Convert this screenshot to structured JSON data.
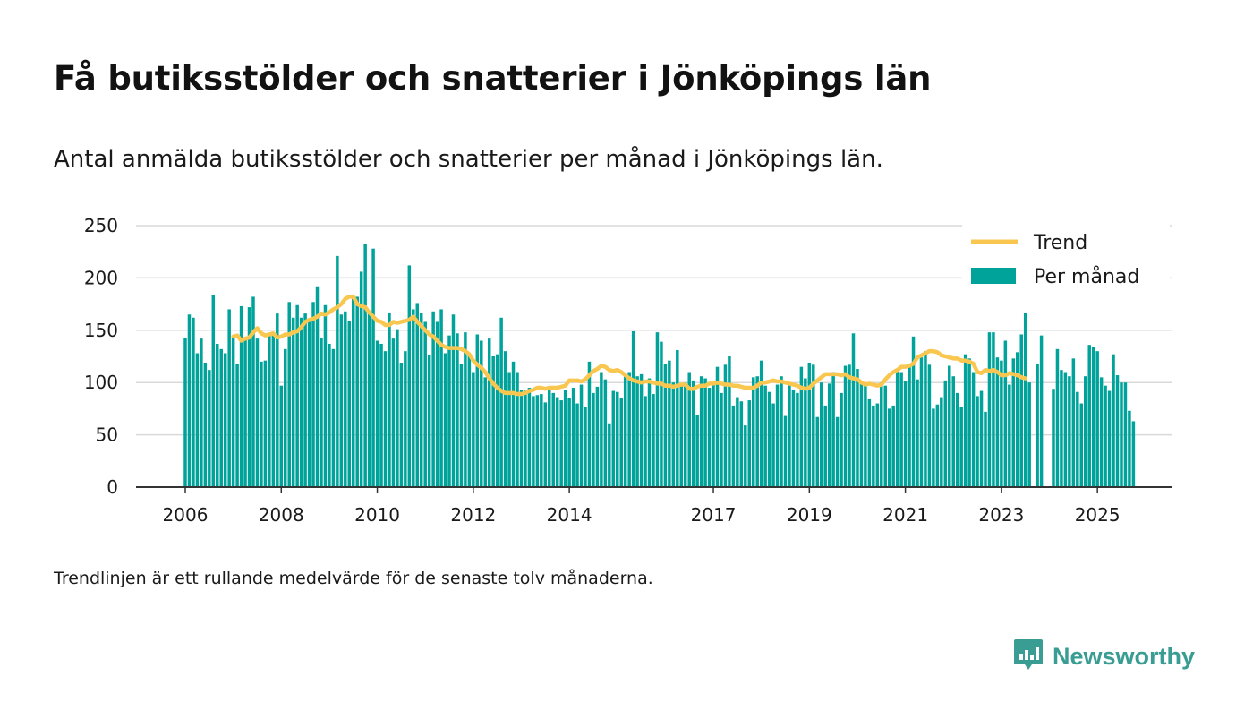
{
  "title": "Få butiksstölder och snatterier i Jönköpings län",
  "subtitle": "Antal anmälda butiksstölder och snatterier per månad i Jönköpings län.",
  "note": "Trendlinjen är ett rullande medelvärde för de senaste tolv månaderna.",
  "brand": "Newsworthy",
  "colors": {
    "bar": "#00a39a",
    "trend": "#f9c74f",
    "grid": "#d9d9d9",
    "axis": "#333333",
    "brand": "#3a9d93"
  },
  "chart_data": {
    "type": "bar",
    "title": "",
    "xlabel": "",
    "ylabel": "",
    "x_start": "2006-01",
    "ylim": [
      0,
      250
    ],
    "y_ticks": [
      0,
      50,
      100,
      150,
      200,
      250
    ],
    "x_ticks": [
      "2006",
      "2008",
      "2010",
      "2012",
      "2014",
      "2017",
      "2019",
      "2021",
      "2023",
      "2025"
    ],
    "grid": "horizontal",
    "legend_position": "top-right",
    "series": [
      {
        "name": "Per månad",
        "type": "bar",
        "values": [
          143,
          165,
          162,
          128,
          142,
          119,
          112,
          184,
          137,
          132,
          128,
          170,
          143,
          118,
          173,
          141,
          172,
          182,
          142,
          120,
          121,
          145,
          145,
          166,
          97,
          132,
          177,
          162,
          174,
          162,
          166,
          158,
          177,
          192,
          143,
          174,
          137,
          132,
          221,
          165,
          168,
          159,
          180,
          182,
          206,
          232,
          167,
          228,
          140,
          137,
          130,
          167,
          142,
          151,
          119,
          130,
          212,
          170,
          176,
          167,
          158,
          126,
          168,
          158,
          170,
          128,
          145,
          165,
          147,
          118,
          148,
          128,
          110,
          146,
          140,
          105,
          142,
          125,
          127,
          162,
          130,
          110,
          120,
          110,
          93,
          93,
          95,
          87,
          88,
          89,
          81,
          94,
          90,
          86,
          83,
          93,
          85,
          95,
          80,
          98,
          77,
          120,
          90,
          96,
          110,
          103,
          61,
          92,
          91,
          85,
          107,
          110,
          149,
          106,
          108,
          87,
          104,
          89,
          148,
          139,
          118,
          121,
          100,
          131,
          98,
          100,
          110,
          102,
          69,
          106,
          104,
          95,
          99,
          115,
          90,
          117,
          125,
          78,
          86,
          82,
          59,
          83,
          105,
          106,
          121,
          97,
          91,
          80,
          98,
          106,
          68,
          98,
          93,
          90,
          115,
          104,
          119,
          117,
          67,
          100,
          78,
          99,
          110,
          67,
          90,
          116,
          117,
          147,
          113,
          100,
          97,
          84,
          78,
          80,
          100,
          97,
          75,
          78,
          111,
          110,
          101,
          118,
          144,
          103,
          124,
          130,
          117,
          75,
          79,
          86,
          102,
          116,
          106,
          90,
          77,
          127,
          123,
          110,
          87,
          92,
          72,
          148,
          148,
          124,
          121,
          140,
          98,
          123,
          129,
          146,
          167,
          100,
          0,
          118,
          145,
          0,
          0,
          94,
          132,
          112,
          110,
          106,
          123,
          91,
          80,
          106,
          136,
          134,
          130,
          105,
          97,
          92,
          127,
          107,
          100,
          100,
          73,
          63
        ]
      },
      {
        "name": "Trend",
        "type": "line",
        "start_index": 12,
        "values": [
          144,
          145,
          140,
          142,
          143,
          148,
          152,
          147,
          145,
          146,
          147,
          143,
          144,
          146,
          146,
          148,
          149,
          153,
          158,
          160,
          161,
          163,
          166,
          165,
          167,
          170,
          172,
          175,
          180,
          182,
          182,
          175,
          173,
          172,
          167,
          163,
          159,
          158,
          155,
          155,
          158,
          157,
          158,
          159,
          160,
          163,
          158,
          154,
          150,
          146,
          144,
          140,
          136,
          134,
          133,
          133,
          133,
          132,
          130,
          127,
          121,
          117,
          114,
          110,
          104,
          99,
          95,
          92,
          90,
          90,
          90,
          89,
          89,
          90,
          92,
          93,
          95,
          95,
          94,
          95,
          95,
          95,
          96,
          97,
          102,
          102,
          102,
          101,
          103,
          107,
          111,
          113,
          116,
          115,
          112,
          111,
          112,
          110,
          107,
          104,
          102,
          101,
          100,
          101,
          101,
          100,
          99,
          99,
          97,
          97,
          96,
          97,
          98,
          98,
          94,
          94,
          96,
          97,
          97,
          99,
          99,
          100,
          99,
          98,
          98,
          97,
          97,
          96,
          95,
          95,
          95,
          97,
          100,
          100,
          101,
          102,
          101,
          101,
          100,
          99,
          98,
          97,
          95,
          94,
          95,
          99,
          102,
          105,
          108,
          108,
          108,
          108,
          107,
          108,
          105,
          104,
          103,
          100,
          98,
          99,
          98,
          97,
          98,
          103,
          107,
          110,
          112,
          115,
          115,
          116,
          118,
          124,
          126,
          128,
          130,
          130,
          129,
          126,
          125,
          124,
          123,
          123,
          121,
          121,
          120,
          118,
          110,
          109,
          112,
          111,
          112,
          110,
          107,
          107,
          109,
          108,
          107,
          105,
          104
        ]
      }
    ]
  }
}
